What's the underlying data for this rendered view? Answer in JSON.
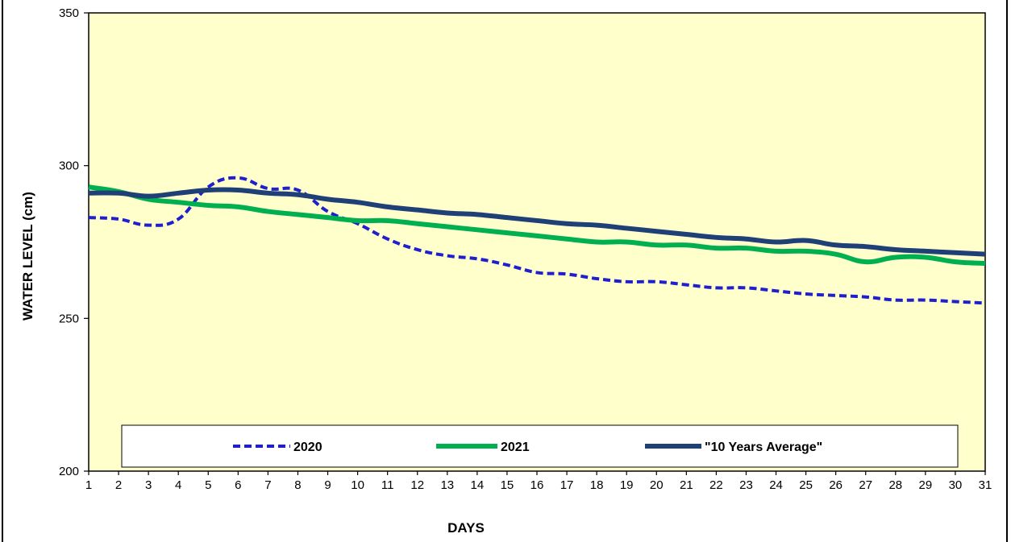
{
  "chart_data": {
    "type": "line",
    "title": "",
    "xlabel": "DAYS",
    "ylabel": "WATER LEVEL (cm)",
    "x": [
      1,
      2,
      3,
      4,
      5,
      6,
      7,
      8,
      9,
      10,
      11,
      12,
      13,
      14,
      15,
      16,
      17,
      18,
      19,
      20,
      21,
      22,
      23,
      24,
      25,
      26,
      27,
      28,
      29,
      30,
      31
    ],
    "xlim": [
      1,
      31
    ],
    "ylim": [
      200,
      350
    ],
    "yticks": [
      200,
      250,
      300,
      350
    ],
    "grid": false,
    "legend_position": "bottom",
    "plot_background": "#FFFFCC",
    "series": [
      {
        "name": "2020",
        "color": "#1F1FCC",
        "style": "dashed",
        "values": [
          283,
          282.5,
          280.5,
          282.5,
          293,
          296,
          292.5,
          292,
          285,
          281,
          276,
          272.5,
          270.5,
          269.5,
          267.5,
          265,
          264.5,
          263,
          262,
          262,
          261,
          260,
          260,
          259,
          258,
          257.5,
          257,
          256,
          256,
          255.5,
          255
        ]
      },
      {
        "name": "2021",
        "color": "#00B050",
        "style": "solid",
        "values": [
          293,
          291.5,
          289,
          288,
          287,
          286.5,
          285,
          284,
          283,
          282,
          282,
          281,
          280,
          279,
          278,
          277,
          276,
          275,
          275,
          274,
          274,
          273,
          273,
          272,
          272,
          271,
          268.5,
          270,
          270,
          268.5,
          268
        ]
      },
      {
        "name": "\"10 Years Average\"",
        "color": "#1F3F77",
        "style": "solid",
        "values": [
          291,
          291,
          290,
          291,
          292,
          292,
          291,
          290.5,
          289,
          288,
          286.5,
          285.5,
          284.5,
          284,
          283,
          282,
          281,
          280.5,
          279.5,
          278.5,
          277.5,
          276.5,
          276,
          275,
          275.5,
          274,
          273.5,
          272.5,
          272,
          271.5,
          271
        ]
      }
    ]
  }
}
